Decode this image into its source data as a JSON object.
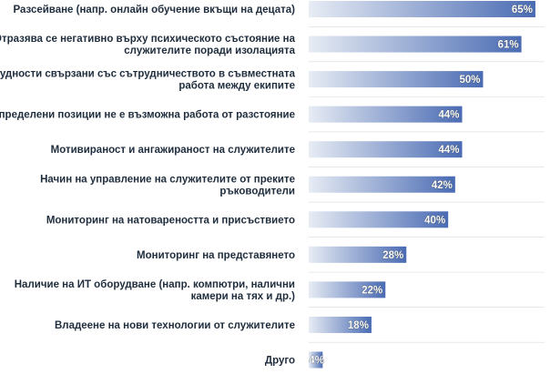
{
  "chart_data": {
    "type": "bar",
    "orientation": "horizontal",
    "categories": [
      [
        "Разсейване (напр. онлайн обучение вкъщи на децата)"
      ],
      [
        "Отразява се негативно върху психическото състояние на",
        "служителите поради изолацията"
      ],
      [
        "Трудности свързани със сътрудничеството в съвместната",
        "работа между екипите"
      ],
      [
        "За определени позиции не е възможна работа от разстояние"
      ],
      [
        "Мотивираност и ангажираност на служителите"
      ],
      [
        "Начин на управление на служителите от преките",
        "ръководители"
      ],
      [
        "Мониторинг на натовареността и присъствието"
      ],
      [
        "Мониторинг на представянето"
      ],
      [
        "Наличие на ИТ оборудване (напр. компютри, налични",
        "камери на тях и др.)"
      ],
      [
        "Владеене на нови технологии от служителите"
      ],
      [
        "Друго"
      ]
    ],
    "values": [
      65,
      61,
      50,
      44,
      44,
      42,
      40,
      28,
      22,
      18,
      4
    ],
    "value_labels": [
      "65%",
      "61%",
      "50%",
      "44%",
      "44%",
      "42%",
      "40%",
      "28%",
      "22%",
      "18%",
      "4%"
    ],
    "unit": "%",
    "xlim": [
      0,
      100
    ],
    "grid": false,
    "legend": "none",
    "colors": {
      "bar_start": "#e7ecf4",
      "bar_end": "#4a6bb3",
      "separator": "#d9d9d9",
      "label_text": "#1f2d3d",
      "value_text": "#ffffff"
    }
  }
}
